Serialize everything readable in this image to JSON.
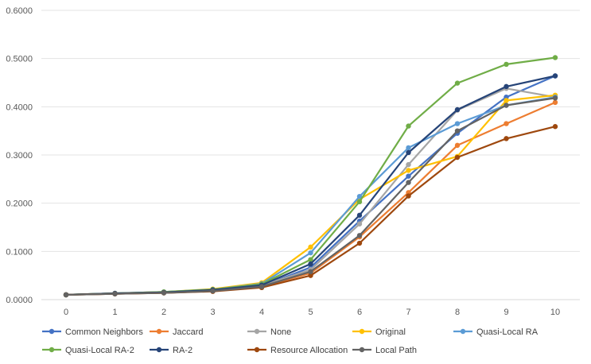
{
  "chart_data": {
    "type": "line",
    "title": "",
    "xlabel": "",
    "ylabel": "",
    "x": [
      0,
      1,
      2,
      3,
      4,
      5,
      6,
      7,
      8,
      9,
      10
    ],
    "ylim": [
      0,
      0.6
    ],
    "y_ticks": [
      "0.0000",
      "0.1000",
      "0.2000",
      "0.3000",
      "0.4000",
      "0.5000",
      "0.6000"
    ],
    "x_ticks": [
      "0",
      "1",
      "2",
      "3",
      "4",
      "5",
      "6",
      "7",
      "8",
      "9",
      "10"
    ],
    "grid": true,
    "legend_position": "bottom",
    "series": [
      {
        "name": "Common Neighbors",
        "color": "#4472C4",
        "values": [
          0.01,
          0.013,
          0.015,
          0.019,
          0.028,
          0.067,
          0.163,
          0.256,
          0.345,
          0.42,
          0.464
        ]
      },
      {
        "name": "Jaccard",
        "color": "#ED7D31",
        "values": [
          0.01,
          0.012,
          0.014,
          0.018,
          0.027,
          0.055,
          0.13,
          0.222,
          0.32,
          0.365,
          0.409
        ]
      },
      {
        "name": "None",
        "color": "#A5A5A5",
        "values": [
          0.01,
          0.012,
          0.015,
          0.019,
          0.029,
          0.062,
          0.157,
          0.28,
          0.393,
          0.438,
          0.42
        ]
      },
      {
        "name": "Original",
        "color": "#FFC000",
        "values": [
          0.01,
          0.013,
          0.016,
          0.022,
          0.035,
          0.109,
          0.208,
          0.268,
          0.297,
          0.413,
          0.424
        ]
      },
      {
        "name": "Quasi-Local RA",
        "color": "#5B9BD5",
        "values": [
          0.01,
          0.013,
          0.016,
          0.021,
          0.033,
          0.097,
          0.214,
          0.315,
          0.365,
          0.403,
          0.42
        ]
      },
      {
        "name": "Quasi-Local RA-2",
        "color": "#70AD47",
        "values": [
          0.01,
          0.013,
          0.016,
          0.021,
          0.032,
          0.083,
          0.203,
          0.36,
          0.449,
          0.488,
          0.502
        ]
      },
      {
        "name": "RA-2",
        "color": "#264478",
        "values": [
          0.01,
          0.013,
          0.015,
          0.02,
          0.03,
          0.074,
          0.175,
          0.305,
          0.394,
          0.442,
          0.464
        ]
      },
      {
        "name": "Resource Allocation",
        "color": "#9E480E",
        "values": [
          0.01,
          0.012,
          0.014,
          0.017,
          0.025,
          0.05,
          0.117,
          0.215,
          0.295,
          0.334,
          0.359
        ]
      },
      {
        "name": "Local Path",
        "color": "#636363",
        "values": [
          0.01,
          0.012,
          0.014,
          0.018,
          0.027,
          0.058,
          0.133,
          0.243,
          0.35,
          0.403,
          0.418
        ]
      }
    ]
  }
}
